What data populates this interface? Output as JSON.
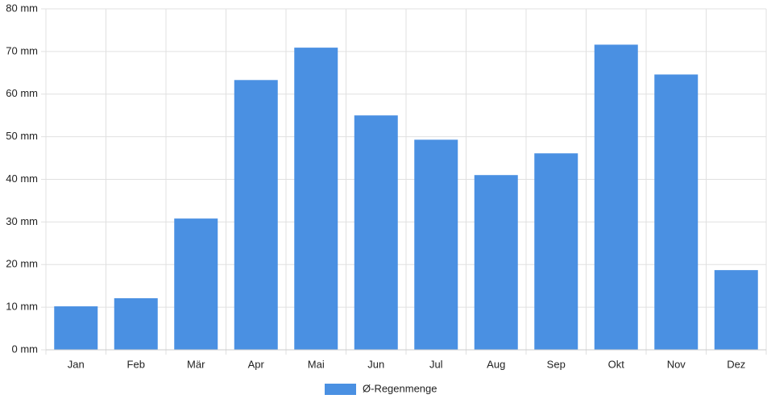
{
  "chart_data": {
    "type": "bar",
    "categories": [
      "Jan",
      "Feb",
      "Mär",
      "Apr",
      "Mai",
      "Jun",
      "Jul",
      "Aug",
      "Sep",
      "Okt",
      "Nov",
      "Dez"
    ],
    "series": [
      {
        "name": "Ø-Regenmenge",
        "color": "#4a90e2",
        "values": [
          10.2,
          12.1,
          30.8,
          63.3,
          70.9,
          55.0,
          49.3,
          41.0,
          46.1,
          71.6,
          64.6,
          18.7
        ]
      }
    ],
    "ylim": [
      0,
      80
    ],
    "yticks": [
      {
        "value": 0,
        "label": "0 mm"
      },
      {
        "value": 10,
        "label": "10 mm"
      },
      {
        "value": 20,
        "label": "20 mm"
      },
      {
        "value": 30,
        "label": "30 mm"
      },
      {
        "value": 40,
        "label": "40 mm"
      },
      {
        "value": 50,
        "label": "50 mm"
      },
      {
        "value": 60,
        "label": "60 mm"
      },
      {
        "value": 70,
        "label": "70 mm"
      },
      {
        "value": 80,
        "label": "80 mm"
      }
    ],
    "grid": true,
    "legend": "bottom"
  }
}
